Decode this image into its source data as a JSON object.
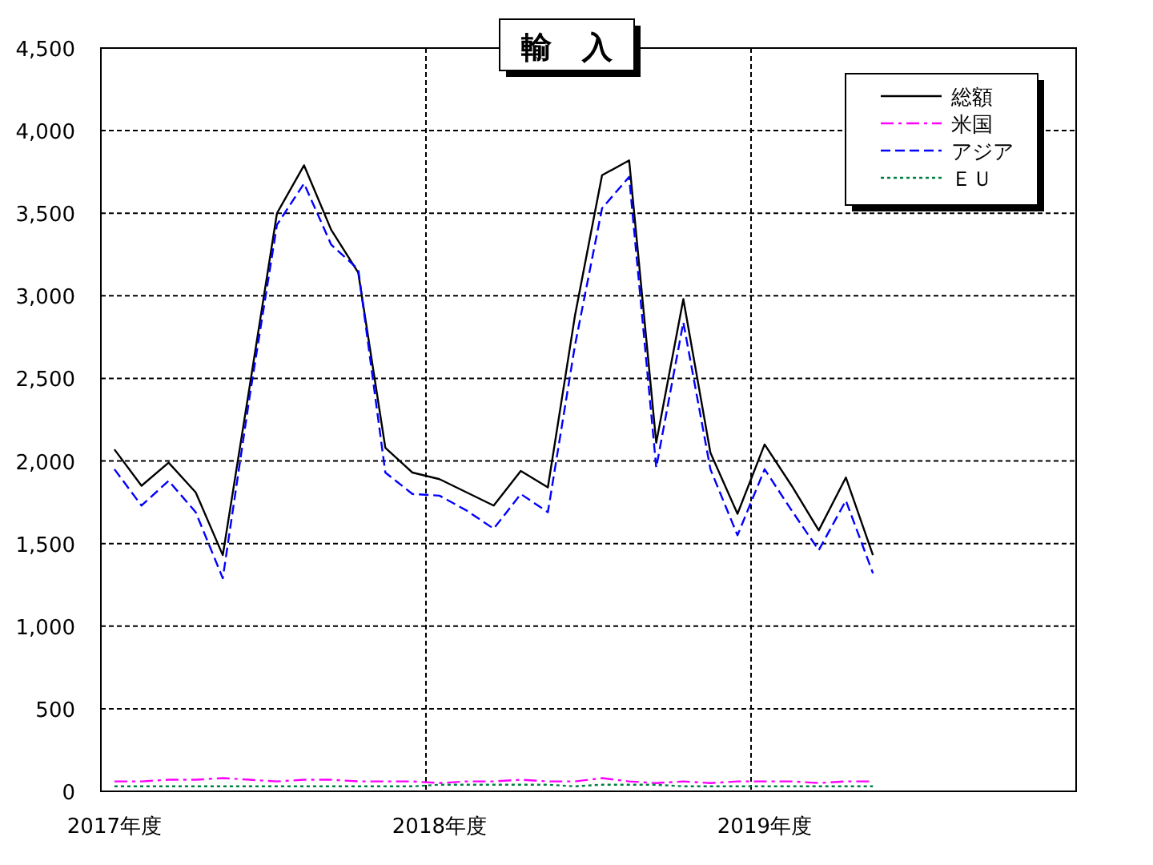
{
  "chart_data": {
    "type": "line",
    "title": "輸　入",
    "categories": [
      "2017年度",
      null,
      null,
      null,
      null,
      null,
      null,
      null,
      null,
      null,
      null,
      null,
      "2018年度",
      null,
      null,
      null,
      null,
      null,
      null,
      null,
      null,
      null,
      null,
      null,
      "2019年度",
      null,
      null,
      null,
      null,
      null,
      null,
      null,
      null,
      null,
      null,
      null
    ],
    "ylim": [
      0,
      4500
    ],
    "yticks": [
      {
        "value": 0,
        "label": "0"
      },
      {
        "value": 500,
        "label": "500"
      },
      {
        "value": 1000,
        "label": "1,000"
      },
      {
        "value": 1500,
        "label": "1,500"
      },
      {
        "value": 2000,
        "label": "2,000"
      },
      {
        "value": 2500,
        "label": "2,500"
      },
      {
        "value": 3000,
        "label": "3,000"
      },
      {
        "value": 3500,
        "label": "3,500"
      },
      {
        "value": 4000,
        "label": "4,000"
      },
      {
        "value": 4500,
        "label": "4,500"
      }
    ],
    "grid": true,
    "legend": "top right",
    "series": [
      {
        "name": "総額",
        "color": "#000000",
        "line_style": "solid",
        "values": [
          2070,
          1850,
          1990,
          1810,
          1430,
          2460,
          3500,
          3790,
          3400,
          3140,
          2080,
          1930,
          1890,
          1810,
          1730,
          1940,
          1840,
          2880,
          3730,
          3820,
          2110,
          2980,
          2050,
          1680,
          2100,
          1850,
          1580,
          1900,
          1430,
          null,
          null,
          null,
          null,
          null,
          null,
          null
        ]
      },
      {
        "name": "米国",
        "color": "#ff00ff",
        "line_style": "dashdot",
        "values": [
          60,
          60,
          70,
          70,
          80,
          70,
          60,
          70,
          70,
          60,
          60,
          60,
          50,
          60,
          60,
          70,
          60,
          60,
          80,
          60,
          50,
          60,
          50,
          60,
          60,
          60,
          50,
          60,
          60,
          null,
          null,
          null,
          null,
          null,
          null,
          null
        ]
      },
      {
        "name": "アジア",
        "color": "#0000ff",
        "line_style": "dashed",
        "values": [
          1950,
          1730,
          1880,
          1690,
          1290,
          2400,
          3430,
          3680,
          3310,
          3160,
          1930,
          1800,
          1790,
          1700,
          1590,
          1800,
          1690,
          2700,
          3530,
          3720,
          1960,
          2840,
          1950,
          1550,
          1950,
          1700,
          1460,
          1760,
          1320,
          null,
          null,
          null,
          null,
          null,
          null,
          null
        ]
      },
      {
        "name": "ＥＵ",
        "color": "#008040",
        "line_style": "dotted",
        "values": [
          30,
          30,
          30,
          30,
          30,
          30,
          30,
          30,
          30,
          30,
          30,
          30,
          40,
          40,
          40,
          40,
          40,
          30,
          40,
          40,
          40,
          30,
          30,
          30,
          30,
          30,
          30,
          30,
          30,
          null,
          null,
          null,
          null,
          null,
          null,
          null
        ]
      }
    ]
  }
}
